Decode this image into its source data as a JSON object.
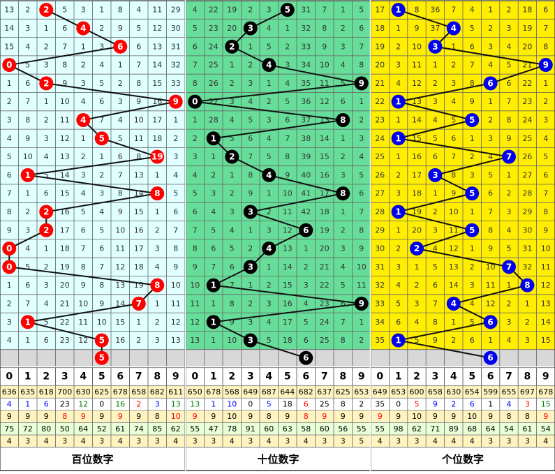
{
  "chart_data": {
    "type": "table",
    "panels": [
      {
        "title": "百位数字",
        "bg": "#e0ffff",
        "ball_color": "#ff0000",
        "grid": [
          [
            13,
            2,
            2,
            5,
            3,
            1,
            8,
            4,
            11,
            29
          ],
          [
            14,
            3,
            1,
            6,
            4,
            2,
            9,
            5,
            12,
            30
          ],
          [
            15,
            4,
            2,
            7,
            1,
            3,
            6,
            6,
            13,
            31
          ],
          [
            0,
            5,
            3,
            8,
            2,
            4,
            1,
            7,
            14,
            32
          ],
          [
            1,
            6,
            2,
            9,
            3,
            5,
            2,
            8,
            15,
            33
          ],
          [
            2,
            7,
            1,
            10,
            4,
            6,
            3,
            9,
            16,
            9
          ],
          [
            3,
            8,
            2,
            11,
            4,
            7,
            4,
            10,
            17,
            1
          ],
          [
            4,
            9,
            3,
            12,
            1,
            5,
            5,
            11,
            18,
            2
          ],
          [
            5,
            10,
            4,
            13,
            2,
            1,
            6,
            8,
            19,
            3
          ],
          [
            6,
            1,
            5,
            14,
            3,
            2,
            7,
            13,
            1,
            4
          ],
          [
            7,
            1,
            6,
            15,
            4,
            3,
            8,
            14,
            8,
            5
          ],
          [
            8,
            2,
            2,
            16,
            5,
            4,
            9,
            15,
            1,
            6
          ],
          [
            9,
            3,
            2,
            17,
            6,
            5,
            10,
            16,
            2,
            7
          ],
          [
            0,
            4,
            1,
            18,
            7,
            6,
            11,
            17,
            3,
            8
          ],
          [
            0,
            5,
            2,
            19,
            8,
            7,
            12,
            18,
            4,
            9
          ],
          [
            1,
            6,
            3,
            20,
            9,
            8,
            13,
            19,
            8,
            10
          ],
          [
            2,
            7,
            4,
            21,
            10,
            9,
            14,
            7,
            1,
            11
          ],
          [
            3,
            1,
            5,
            22,
            11,
            10,
            15,
            1,
            2,
            12
          ],
          [
            4,
            1,
            6,
            23,
            12,
            5,
            16,
            2,
            3,
            13
          ]
        ],
        "balls": [
          2,
          4,
          6,
          0,
          2,
          9,
          4,
          5,
          8,
          1,
          8,
          2,
          2,
          0,
          0,
          8,
          7,
          1,
          5
        ],
        "next": 5,
        "footer_nums": [
          "0",
          "1",
          "2",
          "3",
          "4",
          "5",
          "6",
          "7",
          "8",
          "9"
        ],
        "stats": [
          [
            "636",
            "635",
            "618",
            "700",
            "630",
            "625",
            "678",
            "658",
            "682",
            "611"
          ],
          [
            "4",
            "1",
            "6",
            "23",
            "12",
            "0",
            "16",
            "2",
            "3",
            "13"
          ],
          [
            "9",
            "9",
            "9",
            "8",
            "9",
            "9",
            "9",
            "9",
            "8",
            "10"
          ],
          [
            "75",
            "72",
            "80",
            "50",
            "64",
            "52",
            "61",
            "74",
            "85",
            "62"
          ],
          [
            "4",
            "3",
            "4",
            "3",
            "4",
            "3",
            "4",
            "3",
            "3",
            "4"
          ]
        ],
        "stats_colors": [
          [
            "#000000",
            "#000000",
            "#000000",
            "#000000",
            "#000000",
            "#000000",
            "#000000",
            "#000000",
            "#000000",
            "#000000"
          ],
          [
            "#0000ff",
            "#0000ff",
            "#0000ff",
            "#000000",
            "#008000",
            "#000000",
            "#008000",
            "#ff0000",
            "#0000ff",
            "#008000"
          ],
          [
            "#000000",
            "#000000",
            "#000000",
            "#ff0000",
            "#ff0000",
            "#000000",
            "#ff0000",
            "#000000",
            "#000000",
            "#ff0000"
          ],
          [
            "#000000",
            "#000000",
            "#000000",
            "#000000",
            "#000000",
            "#000000",
            "#000000",
            "#000000",
            "#000000",
            "#000000"
          ],
          [
            "#000000",
            "#000000",
            "#000000",
            "#000000",
            "#000000",
            "#000000",
            "#000000",
            "#000000",
            "#000000",
            "#000000"
          ]
        ]
      },
      {
        "title": "十位数字",
        "bg": "#66dd99",
        "ball_color": "#000000",
        "grid": [
          [
            4,
            22,
            19,
            2,
            3,
            5,
            31,
            7,
            1,
            5
          ],
          [
            5,
            23,
            20,
            3,
            4,
            1,
            32,
            8,
            2,
            6
          ],
          [
            6,
            24,
            2,
            1,
            5,
            2,
            33,
            9,
            3,
            7
          ],
          [
            7,
            25,
            1,
            2,
            4,
            3,
            34,
            10,
            4,
            8
          ],
          [
            8,
            26,
            2,
            3,
            1,
            4,
            35,
            11,
            5,
            9
          ],
          [
            0,
            27,
            3,
            4,
            2,
            5,
            36,
            12,
            6,
            1
          ],
          [
            1,
            28,
            4,
            5,
            3,
            6,
            37,
            13,
            8,
            2
          ],
          [
            2,
            1,
            5,
            6,
            4,
            7,
            38,
            14,
            1,
            3
          ],
          [
            3,
            1,
            2,
            7,
            5,
            8,
            39,
            15,
            2,
            4
          ],
          [
            4,
            2,
            1,
            8,
            4,
            9,
            40,
            16,
            3,
            5
          ],
          [
            5,
            3,
            2,
            9,
            1,
            10,
            41,
            17,
            8,
            6
          ],
          [
            6,
            4,
            3,
            3,
            2,
            11,
            42,
            18,
            1,
            7
          ],
          [
            7,
            5,
            4,
            1,
            3,
            12,
            6,
            19,
            2,
            8
          ],
          [
            8,
            6,
            5,
            2,
            4,
            13,
            1,
            20,
            3,
            9
          ],
          [
            9,
            7,
            6,
            3,
            1,
            14,
            2,
            21,
            4,
            10
          ],
          [
            10,
            1,
            7,
            1,
            2,
            15,
            3,
            22,
            5,
            11
          ],
          [
            11,
            1,
            8,
            2,
            3,
            16,
            4,
            23,
            6,
            9
          ],
          [
            12,
            1,
            9,
            3,
            4,
            17,
            5,
            24,
            7,
            1
          ],
          [
            13,
            1,
            10,
            3,
            5,
            18,
            6,
            25,
            8,
            2
          ]
        ],
        "balls": [
          5,
          3,
          2,
          4,
          9,
          0,
          8,
          1,
          2,
          4,
          8,
          3,
          6,
          4,
          3,
          1,
          9,
          1,
          3
        ],
        "next": 6,
        "footer_nums": [
          "0",
          "1",
          "2",
          "3",
          "4",
          "5",
          "6",
          "7",
          "8",
          "9"
        ],
        "stats": [
          [
            "650",
            "678",
            "568",
            "649",
            "687",
            "644",
            "682",
            "637",
            "625",
            "653"
          ],
          [
            "13",
            "1",
            "10",
            "0",
            "5",
            "18",
            "6",
            "25",
            "8",
            "2"
          ],
          [
            "9",
            "9",
            "10",
            "9",
            "8",
            "9",
            "8",
            "9",
            "9",
            "9"
          ],
          [
            "55",
            "47",
            "78",
            "91",
            "60",
            "63",
            "58",
            "60",
            "56",
            "55"
          ],
          [
            "3",
            "3",
            "4",
            "3",
            "4",
            "3",
            "4",
            "3",
            "3",
            "5"
          ]
        ],
        "stats_colors": [
          [
            "#000000",
            "#000000",
            "#000000",
            "#000000",
            "#000000",
            "#000000",
            "#000000",
            "#000000",
            "#000000",
            "#000000"
          ],
          [
            "#008000",
            "#0000ff",
            "#0000ff",
            "#000000",
            "#0000ff",
            "#000000",
            "#ff0000",
            "#000000",
            "#000000",
            "#000000"
          ],
          [
            "#ff0000",
            "#000000",
            "#000000",
            "#000000",
            "#000000",
            "#000000",
            "#ff0000",
            "#ff0000",
            "#000000",
            "#000000"
          ],
          [
            "#000000",
            "#000000",
            "#000000",
            "#000000",
            "#000000",
            "#000000",
            "#000000",
            "#000000",
            "#000000",
            "#000000"
          ],
          [
            "#000000",
            "#000000",
            "#000000",
            "#000000",
            "#000000",
            "#000000",
            "#000000",
            "#000000",
            "#000000",
            "#000000"
          ]
        ]
      },
      {
        "title": "个位数字",
        "bg": "#ffee00",
        "ball_color": "#0000ee",
        "grid": [
          [
            17,
            1,
            8,
            36,
            7,
            4,
            1,
            2,
            18,
            6
          ],
          [
            18,
            1,
            9,
            37,
            4,
            5,
            2,
            3,
            19,
            7
          ],
          [
            19,
            2,
            10,
            3,
            1,
            6,
            3,
            4,
            20,
            8
          ],
          [
            20,
            3,
            11,
            1,
            2,
            7,
            4,
            5,
            21,
            9
          ],
          [
            21,
            4,
            12,
            2,
            3,
            8,
            6,
            6,
            22,
            1
          ],
          [
            22,
            1,
            13,
            3,
            4,
            9,
            1,
            7,
            23,
            2
          ],
          [
            23,
            1,
            14,
            4,
            5,
            5,
            2,
            8,
            24,
            3
          ],
          [
            24,
            1,
            15,
            5,
            6,
            1,
            3,
            9,
            25,
            4
          ],
          [
            25,
            1,
            16,
            6,
            7,
            2,
            4,
            7,
            26,
            5
          ],
          [
            26,
            2,
            17,
            3,
            8,
            3,
            5,
            1,
            27,
            6
          ],
          [
            27,
            3,
            18,
            1,
            9,
            5,
            6,
            2,
            28,
            7
          ],
          [
            28,
            1,
            19,
            2,
            10,
            1,
            7,
            3,
            29,
            8
          ],
          [
            29,
            1,
            20,
            3,
            11,
            5,
            8,
            4,
            30,
            9
          ],
          [
            30,
            2,
            2,
            4,
            12,
            1,
            9,
            5,
            31,
            10
          ],
          [
            31,
            3,
            1,
            5,
            13,
            2,
            10,
            7,
            32,
            11
          ],
          [
            32,
            4,
            2,
            6,
            14,
            3,
            11,
            1,
            8,
            12
          ],
          [
            33,
            5,
            3,
            7,
            4,
            4,
            12,
            2,
            1,
            13
          ],
          [
            34,
            6,
            4,
            8,
            1,
            5,
            6,
            3,
            2,
            14
          ],
          [
            35,
            1,
            5,
            9,
            2,
            6,
            1,
            4,
            3,
            15
          ]
        ],
        "balls": [
          1,
          4,
          3,
          9,
          6,
          1,
          5,
          1,
          7,
          3,
          5,
          1,
          5,
          2,
          7,
          8,
          4,
          6,
          1
        ],
        "next": 6,
        "footer_nums": [
          "0",
          "1",
          "2",
          "3",
          "4",
          "5",
          "6",
          "7",
          "8",
          "9"
        ],
        "stats": [
          [
            "649",
            "653",
            "600",
            "658",
            "630",
            "654",
            "599",
            "655",
            "697",
            "678"
          ],
          [
            "35",
            "0",
            "5",
            "9",
            "2",
            "6",
            "1",
            "4",
            "3",
            "15"
          ],
          [
            "9",
            "9",
            "10",
            "9",
            "9",
            "10",
            "9",
            "8",
            "8",
            "9"
          ],
          [
            "55",
            "98",
            "62",
            "71",
            "89",
            "68",
            "64",
            "54",
            "61",
            "54"
          ],
          [
            "4",
            "3",
            "3",
            "4",
            "4",
            "4",
            "3",
            "3",
            "3",
            "4"
          ]
        ],
        "stats_colors": [
          [
            "#000000",
            "#000000",
            "#000000",
            "#000000",
            "#000000",
            "#000000",
            "#000000",
            "#000000",
            "#000000",
            "#000000"
          ],
          [
            "#000000",
            "#000000",
            "#ff0000",
            "#0000ff",
            "#0000ff",
            "#0000ff",
            "#000000",
            "#0000ff",
            "#ff0000",
            "#008000"
          ],
          [
            "#ff0000",
            "#000000",
            "#000000",
            "#000000",
            "#000000",
            "#000000",
            "#000000",
            "#000000",
            "#000000",
            "#ff0000"
          ],
          [
            "#000000",
            "#000000",
            "#000000",
            "#000000",
            "#000000",
            "#000000",
            "#000000",
            "#000000",
            "#000000",
            "#000000"
          ],
          [
            "#000000",
            "#000000",
            "#000000",
            "#000000",
            "#000000",
            "#000000",
            "#000000",
            "#000000",
            "#000000",
            "#000000"
          ]
        ]
      }
    ]
  }
}
